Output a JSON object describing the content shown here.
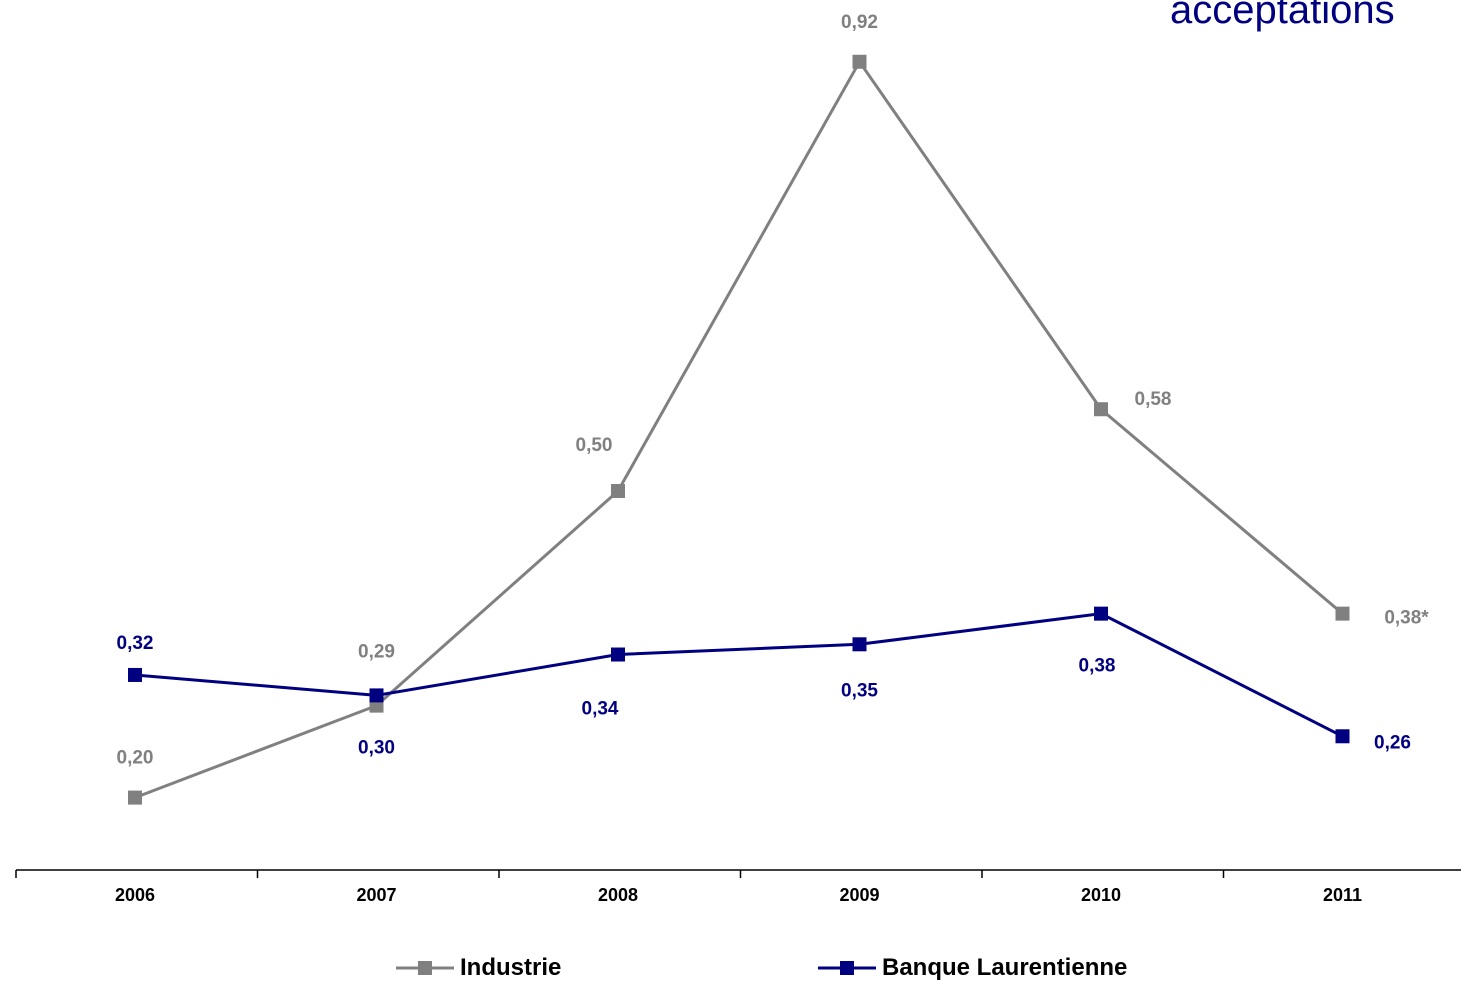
{
  "title_fragment": "acceptations",
  "colors": {
    "industrie": "#808080",
    "banque": "#000080",
    "axis": "#000000"
  },
  "chart_data": {
    "type": "line",
    "categories": [
      "2006",
      "2007",
      "2008",
      "2009",
      "2010",
      "2011"
    ],
    "ylim": [
      0,
      1.0
    ],
    "grid": false,
    "legend_position": "bottom",
    "series": [
      {
        "name": "Industrie",
        "color": "#808080",
        "values": [
          0.2,
          0.29,
          0.5,
          0.92,
          0.58,
          0.38
        ],
        "labels": [
          "0,20",
          "0,29",
          "0,50",
          "0,92",
          "0,58",
          "0,38*"
        ]
      },
      {
        "name": "Banque Laurentienne",
        "color": "#000080",
        "values": [
          0.32,
          0.3,
          0.34,
          0.35,
          0.38,
          0.26
        ],
        "labels": [
          "0,32",
          "0,30",
          "0,34",
          "0,35",
          "0,38",
          "0,26"
        ]
      }
    ]
  }
}
